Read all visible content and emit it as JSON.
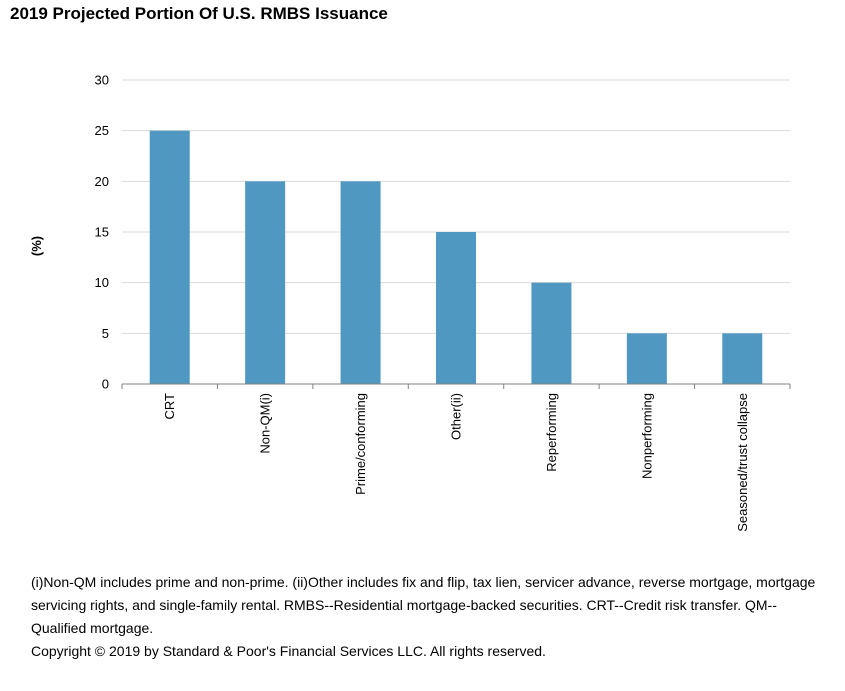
{
  "title": "2019 Projected Portion Of U.S. RMBS Issuance",
  "colors": {
    "bar": "#4f98c2",
    "grid": "#d9d9d9",
    "axis": "#808080"
  },
  "chart_data": {
    "type": "bar",
    "title": "2019 Projected Portion Of U.S. RMBS Issuance",
    "xlabel": "",
    "ylabel": "(%)",
    "ylim": [
      0,
      30
    ],
    "yticks": [
      0,
      5,
      10,
      15,
      20,
      25,
      30
    ],
    "grid": true,
    "legend": "none",
    "categories": [
      "CRT",
      "Non-QM(i)",
      "Prime/conforming",
      "Other(ii)",
      "Reperforming",
      "Nonperforming",
      "Seasoned/trust collapse"
    ],
    "values": [
      25,
      20,
      20,
      15,
      10,
      5,
      5
    ]
  },
  "footnotes": {
    "line1": "(i)Non-QM includes prime and non-prime. (ii)Other includes fix and flip, tax lien, servicer advance, reverse mortgage, mortgage servicing rights, and single-family rental. RMBS--Residential mortgage-backed securities. CRT--Credit risk transfer. QM--Qualified mortgage.",
    "copyright": "Copyright © 2019 by Standard & Poor's Financial Services LLC. All rights reserved."
  }
}
